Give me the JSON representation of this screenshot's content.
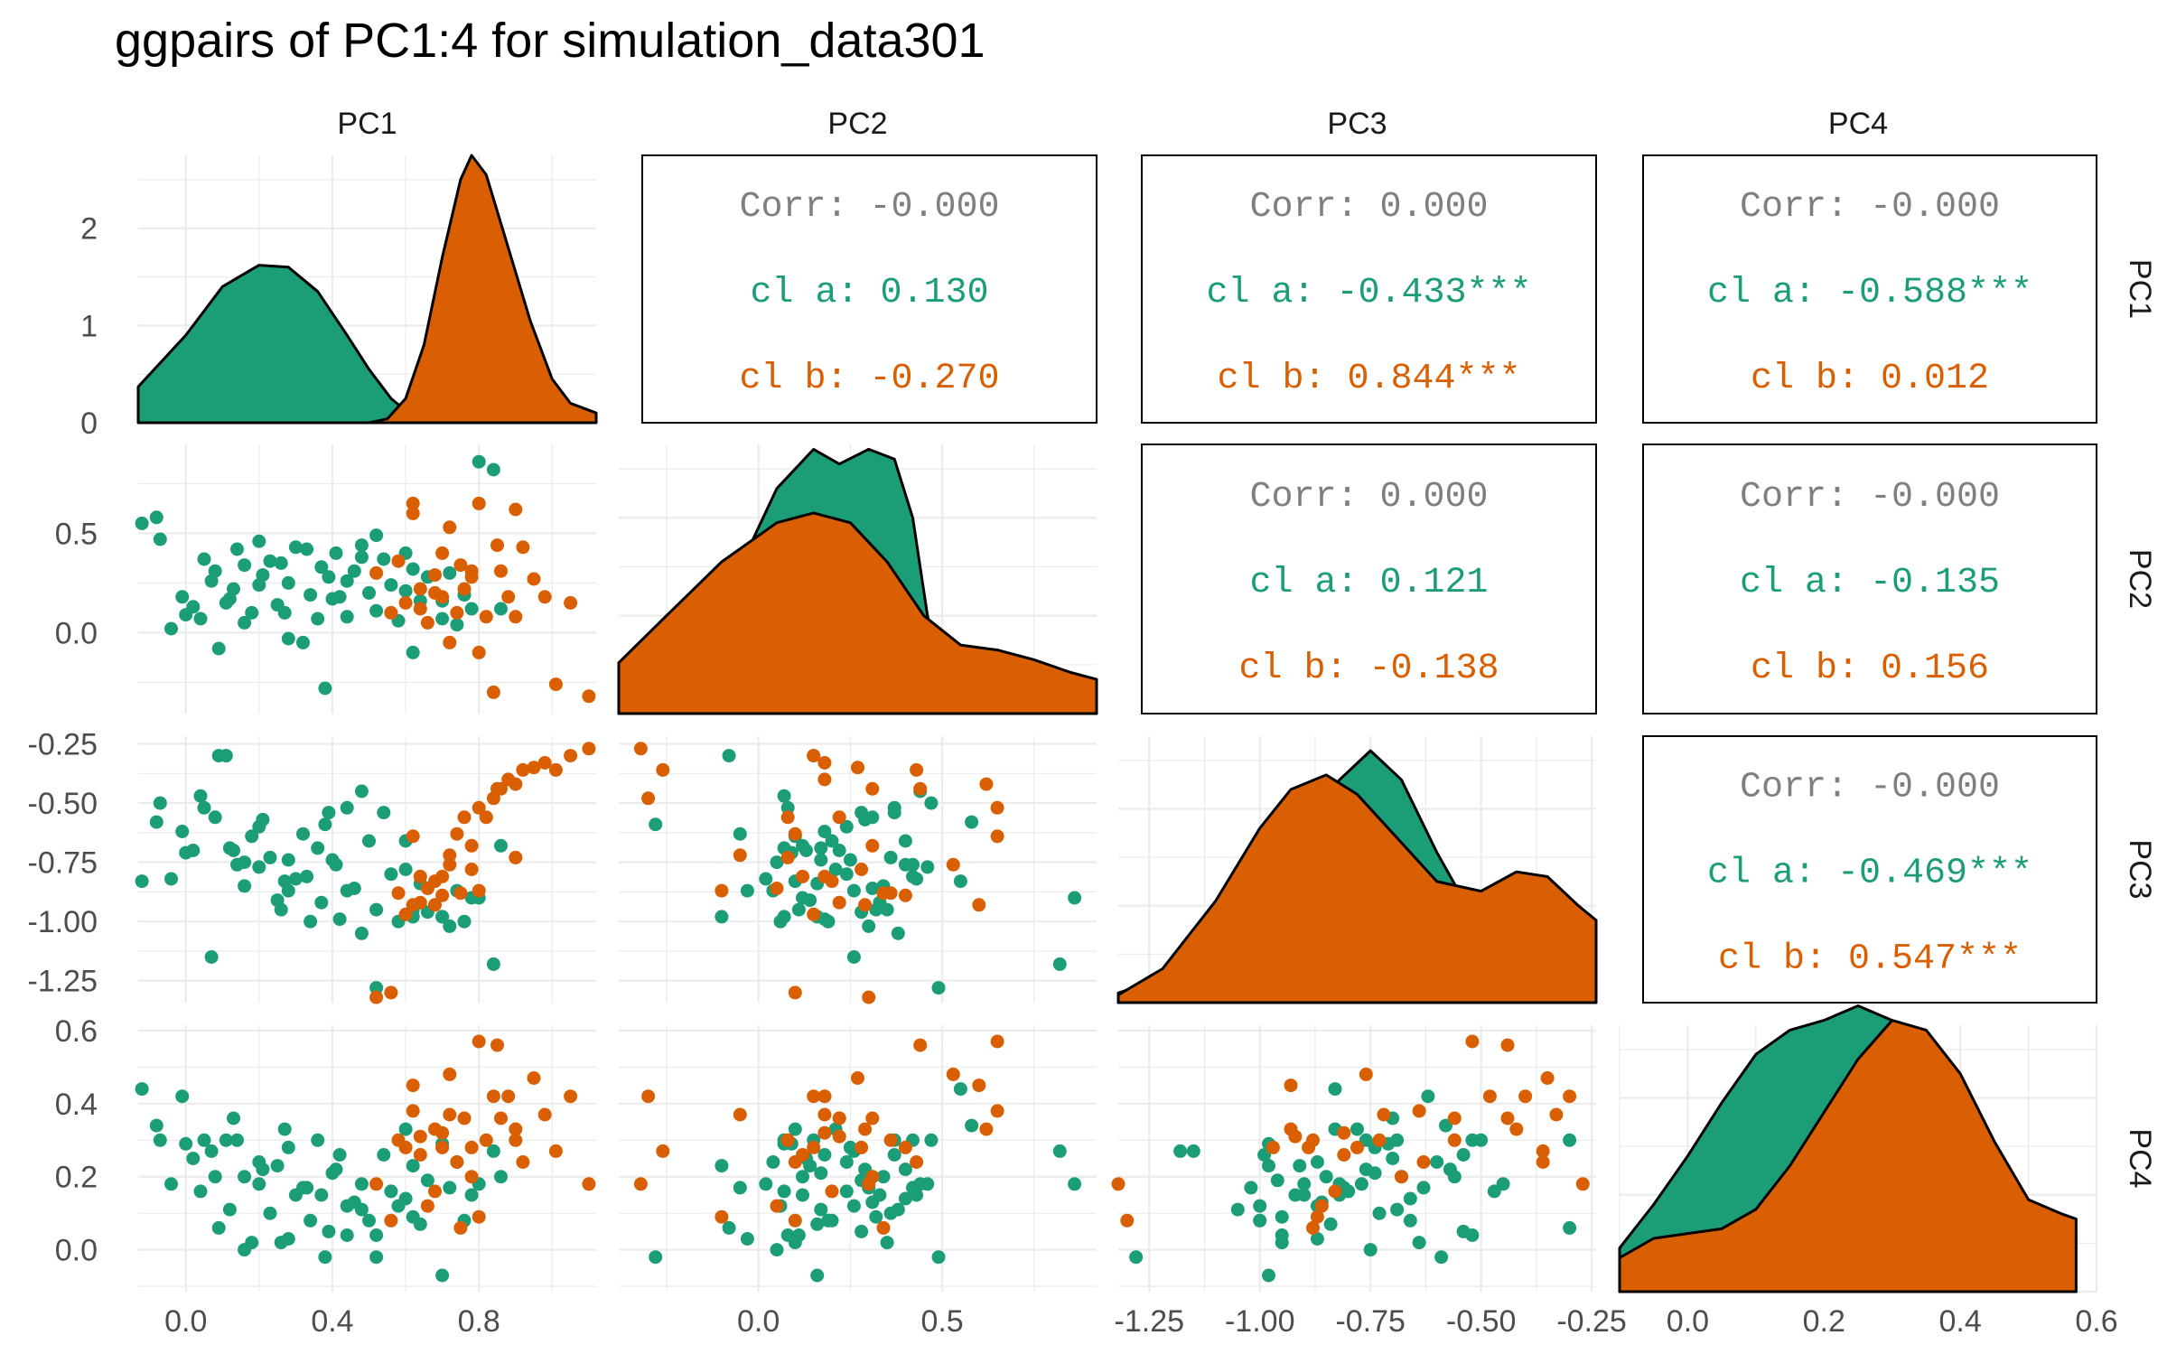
{
  "title": "ggpairs of PC1:4 for simulation_data301",
  "colors": {
    "cluster_a": "#1B9E77",
    "cluster_b": "#D95F02",
    "corr_text": "#7F7F7F",
    "grid": "#EBEBEB",
    "axis_text": "#4D4D4D"
  },
  "chart_data": {
    "type": "scatter",
    "variables": [
      "PC1",
      "PC2",
      "PC3",
      "PC4"
    ],
    "groups": [
      {
        "name": "a",
        "color": "#1B9E77"
      },
      {
        "name": "b",
        "color": "#D95F02"
      }
    ],
    "axes": {
      "PC1": {
        "range": [
          -0.13,
          1.12
        ],
        "ticks": [
          0.0,
          0.4,
          0.8
        ],
        "tick_labels": [
          "0.0",
          "0.4",
          "0.8"
        ]
      },
      "PC2": {
        "range": [
          -0.38,
          0.92
        ],
        "ticks": [
          0.0,
          0.5
        ],
        "tick_labels": [
          "0.0",
          "0.5"
        ]
      },
      "PC3": {
        "range": [
          -1.32,
          -0.24
        ],
        "ticks": [
          -1.25,
          -1.0,
          -0.75,
          -0.5,
          -0.25
        ],
        "tick_labels": [
          "-1.25",
          "-1.00",
          "-0.75",
          "-0.50",
          "-0.25"
        ]
      },
      "PC4": {
        "range": [
          -0.1,
          0.6
        ],
        "ticks": [
          0.0,
          0.2,
          0.4,
          0.6
        ],
        "tick_labels": [
          "0.0",
          "0.2",
          "0.4",
          "0.6"
        ]
      }
    },
    "density_axis": {
      "range": [
        0,
        2.75
      ],
      "ticks": [
        0,
        1,
        2
      ],
      "tick_labels": [
        "0",
        "1",
        "2"
      ]
    },
    "correlations": [
      {
        "row": "PC1",
        "col": "PC2",
        "lines": [
          "Corr: -0.000",
          "cl a: 0.130",
          "cl b: -0.270"
        ]
      },
      {
        "row": "PC1",
        "col": "PC3",
        "lines": [
          "Corr: 0.000",
          "cl a: -0.433***",
          "cl b: 0.844***"
        ]
      },
      {
        "row": "PC1",
        "col": "PC4",
        "lines": [
          "Corr: -0.000",
          "cl a: -0.588***",
          "cl b: 0.012"
        ]
      },
      {
        "row": "PC2",
        "col": "PC3",
        "lines": [
          "Corr: 0.000",
          "cl a: 0.121",
          "cl b: -0.138"
        ]
      },
      {
        "row": "PC2",
        "col": "PC4",
        "lines": [
          "Corr: -0.000",
          "cl a: -0.135",
          "cl b: 0.156"
        ]
      },
      {
        "row": "PC3",
        "col": "PC4",
        "lines": [
          "Corr: -0.000",
          "cl a: -0.469***",
          "cl b: 0.547***"
        ]
      }
    ],
    "densities": {
      "PC1": {
        "a": [
          [
            -0.13,
            0.37
          ],
          [
            0.0,
            0.9
          ],
          [
            0.1,
            1.4
          ],
          [
            0.2,
            1.62
          ],
          [
            0.28,
            1.6
          ],
          [
            0.36,
            1.35
          ],
          [
            0.44,
            0.9
          ],
          [
            0.5,
            0.55
          ],
          [
            0.56,
            0.25
          ],
          [
            0.62,
            0.06
          ],
          [
            0.7,
            0.0
          ]
        ],
        "b": [
          [
            0.5,
            0.0
          ],
          [
            0.55,
            0.04
          ],
          [
            0.6,
            0.25
          ],
          [
            0.65,
            0.8
          ],
          [
            0.7,
            1.7
          ],
          [
            0.75,
            2.5
          ],
          [
            0.78,
            2.75
          ],
          [
            0.82,
            2.55
          ],
          [
            0.88,
            1.8
          ],
          [
            0.94,
            1.05
          ],
          [
            1.0,
            0.45
          ],
          [
            1.05,
            0.2
          ],
          [
            1.12,
            0.1
          ]
        ]
      },
      "PC2": {
        "a": [
          [
            -0.38,
            0.0
          ],
          [
            -0.3,
            0.04
          ],
          [
            -0.2,
            0.3
          ],
          [
            -0.05,
            1.5
          ],
          [
            0.05,
            2.3
          ],
          [
            0.15,
            2.7
          ],
          [
            0.22,
            2.55
          ],
          [
            0.3,
            2.7
          ],
          [
            0.37,
            2.6
          ],
          [
            0.42,
            2.0
          ],
          [
            0.46,
            1.0
          ],
          [
            0.5,
            0.3
          ],
          [
            0.56,
            0.05
          ],
          [
            0.65,
            0.0
          ]
        ],
        "b": [
          [
            -0.38,
            0.52
          ],
          [
            -0.25,
            1.0
          ],
          [
            -0.1,
            1.55
          ],
          [
            0.05,
            1.95
          ],
          [
            0.15,
            2.05
          ],
          [
            0.25,
            1.95
          ],
          [
            0.35,
            1.55
          ],
          [
            0.45,
            1.0
          ],
          [
            0.55,
            0.7
          ],
          [
            0.65,
            0.65
          ],
          [
            0.75,
            0.55
          ],
          [
            0.85,
            0.42
          ],
          [
            0.92,
            0.35
          ]
        ]
      },
      "PC3": {
        "a": [
          [
            -1.32,
            0.1
          ],
          [
            -1.22,
            0.25
          ],
          [
            -1.1,
            0.9
          ],
          [
            -1.0,
            1.55
          ],
          [
            -0.9,
            1.8
          ],
          [
            -0.82,
            2.3
          ],
          [
            -0.75,
            2.6
          ],
          [
            -0.68,
            2.3
          ],
          [
            -0.6,
            1.55
          ],
          [
            -0.52,
            0.9
          ],
          [
            -0.45,
            0.35
          ],
          [
            -0.38,
            0.1
          ],
          [
            -0.3,
            0.0
          ]
        ],
        "b": [
          [
            -1.32,
            0.08
          ],
          [
            -1.22,
            0.35
          ],
          [
            -1.1,
            1.05
          ],
          [
            -1.0,
            1.8
          ],
          [
            -0.93,
            2.2
          ],
          [
            -0.85,
            2.35
          ],
          [
            -0.78,
            2.15
          ],
          [
            -0.7,
            1.75
          ],
          [
            -0.6,
            1.25
          ],
          [
            -0.5,
            1.15
          ],
          [
            -0.42,
            1.35
          ],
          [
            -0.35,
            1.3
          ],
          [
            -0.28,
            1.0
          ],
          [
            -0.24,
            0.85
          ]
        ]
      },
      "PC4": {
        "a": [
          [
            -0.1,
            0.45
          ],
          [
            -0.05,
            0.9
          ],
          [
            0.0,
            1.4
          ],
          [
            0.05,
            1.95
          ],
          [
            0.1,
            2.45
          ],
          [
            0.15,
            2.7
          ],
          [
            0.2,
            2.8
          ],
          [
            0.25,
            2.95
          ],
          [
            0.3,
            2.8
          ],
          [
            0.35,
            2.2
          ],
          [
            0.4,
            1.2
          ],
          [
            0.45,
            0.45
          ],
          [
            0.5,
            0.1
          ],
          [
            0.57,
            0.0
          ]
        ],
        "b": [
          [
            -0.1,
            0.35
          ],
          [
            -0.05,
            0.55
          ],
          [
            0.0,
            0.6
          ],
          [
            0.05,
            0.65
          ],
          [
            0.1,
            0.85
          ],
          [
            0.15,
            1.3
          ],
          [
            0.2,
            1.85
          ],
          [
            0.25,
            2.4
          ],
          [
            0.3,
            2.8
          ],
          [
            0.35,
            2.7
          ],
          [
            0.4,
            2.25
          ],
          [
            0.45,
            1.55
          ],
          [
            0.5,
            0.95
          ],
          [
            0.55,
            0.8
          ],
          [
            0.57,
            0.75
          ]
        ]
      }
    },
    "points": {
      "a": [
        [
          -0.12,
          0.55,
          -0.83,
          0.44
        ],
        [
          -0.08,
          0.58,
          -0.58,
          0.34
        ],
        [
          -0.07,
          0.47,
          -0.5,
          0.3
        ],
        [
          -0.04,
          0.02,
          -0.82,
          0.18
        ],
        [
          -0.01,
          0.18,
          -0.62,
          0.42
        ],
        [
          0.02,
          0.13,
          -0.7,
          0.25
        ],
        [
          0.04,
          0.07,
          -0.47,
          0.16
        ],
        [
          0.05,
          0.37,
          -0.52,
          0.3
        ],
        [
          0.07,
          0.26,
          -1.15,
          0.27
        ],
        [
          0.09,
          -0.08,
          -0.3,
          0.06
        ],
        [
          0.11,
          0.15,
          -0.3,
          0.3
        ],
        [
          0.13,
          0.22,
          -0.7,
          0.36
        ],
        [
          0.14,
          0.42,
          -0.76,
          0.3
        ],
        [
          0.16,
          0.34,
          -0.85,
          0.2
        ],
        [
          0.18,
          0.1,
          -0.64,
          0.02
        ],
        [
          0.2,
          0.46,
          -0.77,
          0.18
        ],
        [
          0.21,
          0.29,
          -0.57,
          0.22
        ],
        [
          0.23,
          0.36,
          -0.73,
          0.1
        ],
        [
          0.25,
          0.14,
          -0.91,
          0.23
        ],
        [
          0.26,
          0.35,
          -0.95,
          0.02
        ],
        [
          0.28,
          0.25,
          -0.74,
          0.28
        ],
        [
          0.3,
          0.43,
          -0.82,
          0.15
        ],
        [
          0.32,
          -0.05,
          -0.63,
          0.17
        ],
        [
          0.34,
          0.19,
          -1.0,
          0.08
        ],
        [
          0.36,
          0.07,
          -0.69,
          0.3
        ],
        [
          0.37,
          0.33,
          -0.92,
          0.15
        ],
        [
          0.39,
          0.28,
          -0.54,
          0.05
        ],
        [
          0.41,
          0.4,
          -0.76,
          0.22
        ],
        [
          0.42,
          0.18,
          -0.99,
          0.26
        ],
        [
          0.44,
          0.08,
          -0.52,
          0.04
        ],
        [
          0.46,
          0.31,
          -0.86,
          0.13
        ],
        [
          0.48,
          0.44,
          -0.45,
          0.18
        ],
        [
          0.5,
          0.2,
          -0.66,
          0.08
        ],
        [
          0.52,
          0.11,
          -0.95,
          0.04
        ],
        [
          0.54,
          0.37,
          -0.54,
          0.26
        ],
        [
          0.56,
          0.24,
          -0.8,
          0.16
        ],
        [
          0.58,
          0.06,
          -1.0,
          0.12
        ],
        [
          0.6,
          0.4,
          -0.66,
          0.14
        ],
        [
          0.62,
          -0.1,
          -0.98,
          0.23
        ],
        [
          0.64,
          0.16,
          -0.84,
          0.07
        ],
        [
          0.66,
          0.28,
          -0.96,
          0.19
        ],
        [
          0.7,
          0.07,
          -0.98,
          0.29
        ],
        [
          0.72,
          0.3,
          -1.02,
          0.17
        ],
        [
          0.74,
          0.04,
          -0.87,
          0.24
        ],
        [
          0.76,
          0.19,
          -1.0,
          0.08
        ],
        [
          0.8,
          0.86,
          -0.9,
          0.18
        ],
        [
          0.84,
          0.82,
          -1.18,
          0.27
        ],
        [
          0.86,
          0.12,
          -0.68,
          0.2
        ],
        [
          0.6,
          0.21,
          -0.78,
          0.33
        ],
        [
          0.48,
          0.38,
          -1.05,
          0.11
        ],
        [
          0.38,
          -0.28,
          -0.59,
          -0.02
        ],
        [
          0.28,
          -0.03,
          -0.87,
          0.03
        ],
        [
          0.16,
          0.05,
          -0.75,
          0.0
        ],
        [
          0.12,
          0.17,
          -0.69,
          0.11
        ],
        [
          0.08,
          0.31,
          -0.56,
          0.2
        ],
        [
          0.2,
          0.24,
          -0.6,
          0.24
        ],
        [
          0.33,
          0.42,
          -0.81,
          0.17
        ],
        [
          0.44,
          0.26,
          -0.87,
          0.12
        ],
        [
          0.52,
          0.49,
          -1.28,
          -0.02
        ],
        [
          0.7,
          0.16,
          -0.98,
          -0.07
        ],
        [
          0.78,
          0.12,
          -0.9,
          0.15
        ],
        [
          0.62,
          0.32,
          -0.95,
          0.09
        ],
        [
          0.27,
          0.1,
          -0.83,
          0.33
        ],
        [
          0.0,
          0.09,
          -0.71,
          0.29
        ],
        [
          0.4,
          0.17,
          -0.74,
          0.21
        ]
      ],
      "b": [
        [
          0.52,
          0.3,
          -1.32,
          0.18
        ],
        [
          0.56,
          0.1,
          -1.3,
          0.08
        ],
        [
          0.58,
          0.36,
          -0.88,
          0.3
        ],
        [
          0.6,
          0.15,
          -0.97,
          0.28
        ],
        [
          0.62,
          0.6,
          -0.93,
          0.45
        ],
        [
          0.64,
          0.22,
          -0.92,
          0.31
        ],
        [
          0.66,
          0.05,
          -0.86,
          0.12
        ],
        [
          0.68,
          0.29,
          -0.93,
          0.33
        ],
        [
          0.7,
          0.4,
          -0.89,
          0.28
        ],
        [
          0.72,
          0.53,
          -0.76,
          0.48
        ],
        [
          0.74,
          0.1,
          -0.63,
          0.24
        ],
        [
          0.76,
          0.22,
          -0.56,
          0.36
        ],
        [
          0.78,
          0.31,
          -0.68,
          0.2
        ],
        [
          0.8,
          0.65,
          -0.52,
          0.57
        ],
        [
          0.82,
          0.08,
          -0.56,
          0.3
        ],
        [
          0.84,
          -0.3,
          -0.48,
          0.42
        ],
        [
          0.86,
          0.31,
          -0.44,
          0.36
        ],
        [
          0.88,
          0.18,
          -0.4,
          0.42
        ],
        [
          0.9,
          0.62,
          -0.42,
          0.33
        ],
        [
          0.92,
          0.43,
          -0.36,
          0.24
        ],
        [
          0.95,
          0.27,
          -0.35,
          0.47
        ],
        [
          0.98,
          0.18,
          -0.33,
          0.37
        ],
        [
          1.01,
          -0.26,
          -0.36,
          0.27
        ],
        [
          1.05,
          0.15,
          -0.3,
          0.42
        ],
        [
          1.1,
          -0.32,
          -0.27,
          0.18
        ],
        [
          0.64,
          0.12,
          -0.81,
          0.26
        ],
        [
          0.72,
          -0.05,
          -0.72,
          0.37
        ],
        [
          0.78,
          0.28,
          -0.78,
          0.28
        ],
        [
          0.85,
          0.44,
          -0.44,
          0.56
        ],
        [
          0.68,
          0.2,
          -0.83,
          0.16
        ],
        [
          0.75,
          0.34,
          -0.88,
          0.06
        ],
        [
          0.8,
          -0.1,
          -0.87,
          0.09
        ],
        [
          0.9,
          0.08,
          -0.73,
          0.3
        ],
        [
          0.62,
          0.65,
          -0.64,
          0.38
        ],
        [
          0.7,
          0.18,
          -0.81,
          0.32
        ]
      ]
    }
  }
}
